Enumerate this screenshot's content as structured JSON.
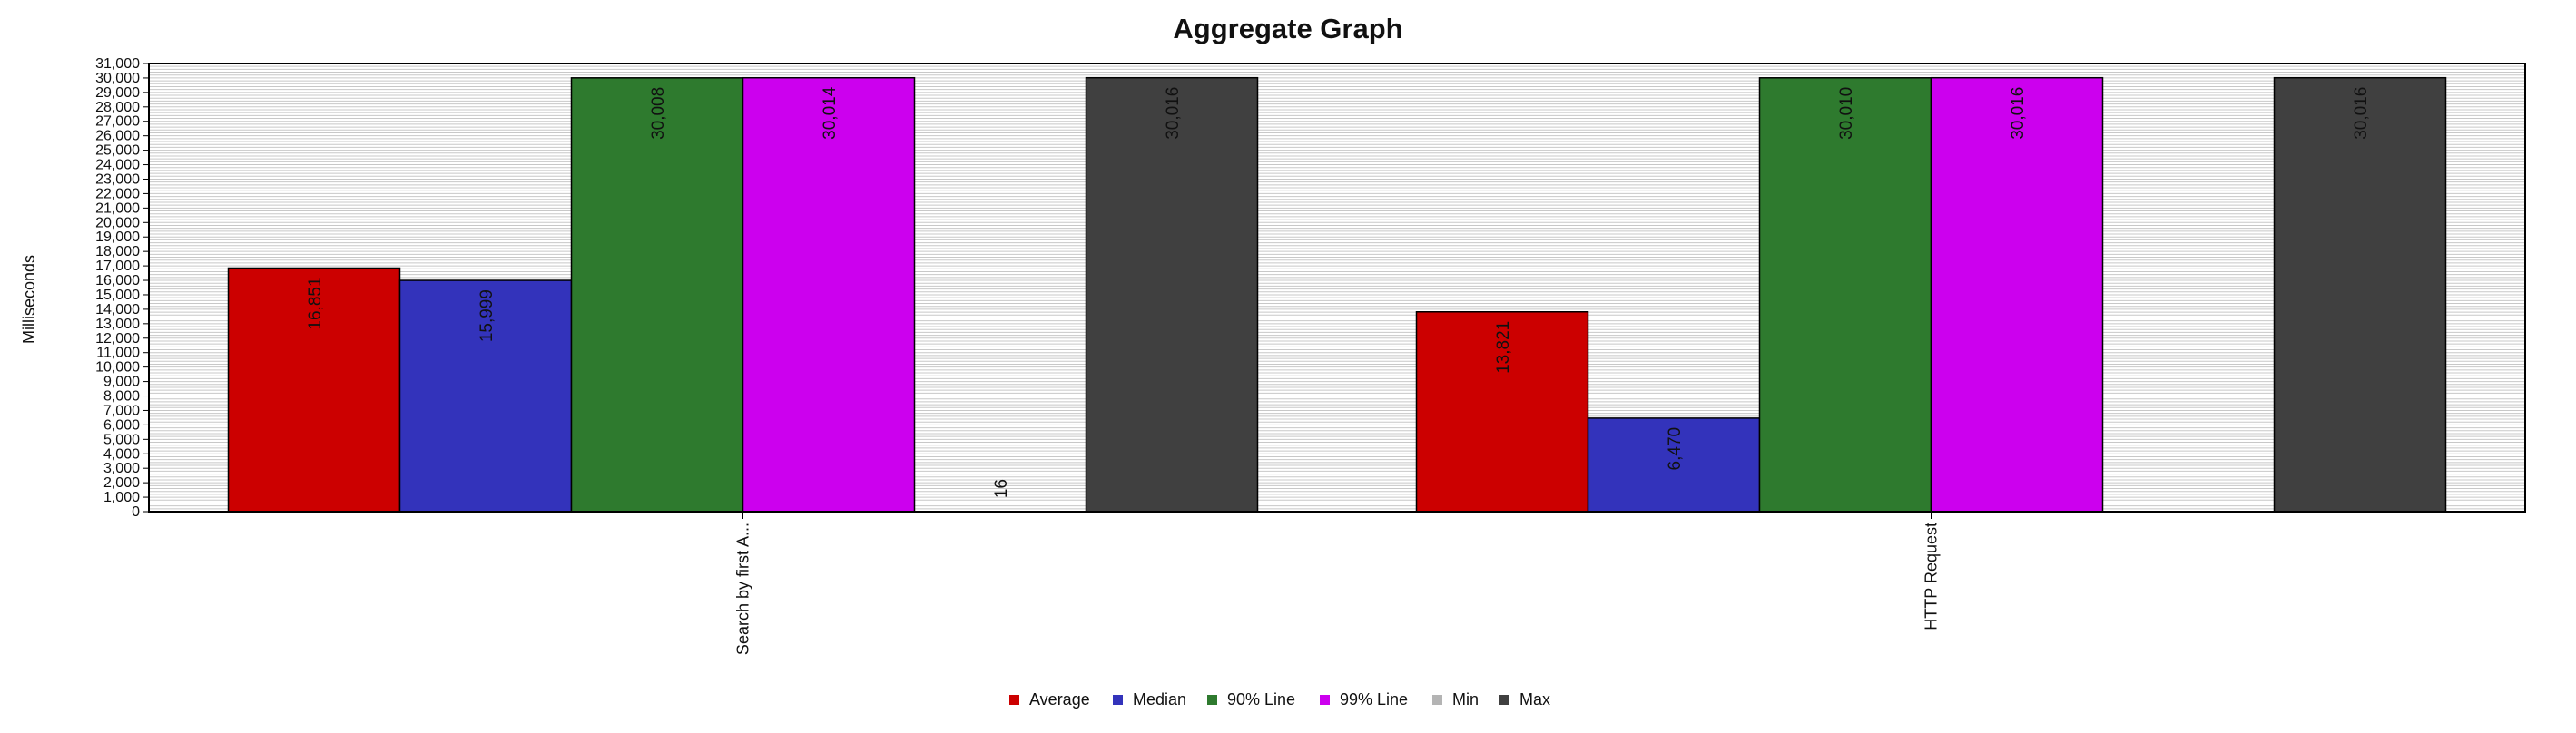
{
  "chart_data": {
    "type": "bar",
    "title": "Aggregate Graph",
    "ylabel": "Milliseconds",
    "xlabel": "",
    "ylim": [
      0,
      31000
    ],
    "ytick_step": 1000,
    "grid": true,
    "legend_position": "bottom-center",
    "categories": [
      "Search by first A...",
      "HTTP Request"
    ],
    "series": [
      {
        "name": "Average",
        "color": "#cc0000",
        "values": [
          16851,
          13821
        ],
        "labels": [
          "16,851",
          "13,821"
        ]
      },
      {
        "name": "Median",
        "color": "#3333bb",
        "values": [
          15999,
          6470
        ],
        "labels": [
          "15,999",
          "6,470"
        ]
      },
      {
        "name": "90% Line",
        "color": "#2e7a2e",
        "values": [
          30008,
          30010
        ],
        "labels": [
          "30,008",
          "30,010"
        ]
      },
      {
        "name": "99% Line",
        "color": "#cc00ee",
        "values": [
          30014,
          30016
        ],
        "labels": [
          "30,014",
          "30,016"
        ]
      },
      {
        "name": "Min",
        "color": "#b4b4b4",
        "values": [
          16,
          null
        ],
        "labels": [
          "16",
          ""
        ]
      },
      {
        "name": "Max",
        "color": "#404040",
        "values": [
          30016,
          30016
        ],
        "labels": [
          "30,016",
          "30,016"
        ]
      }
    ]
  }
}
